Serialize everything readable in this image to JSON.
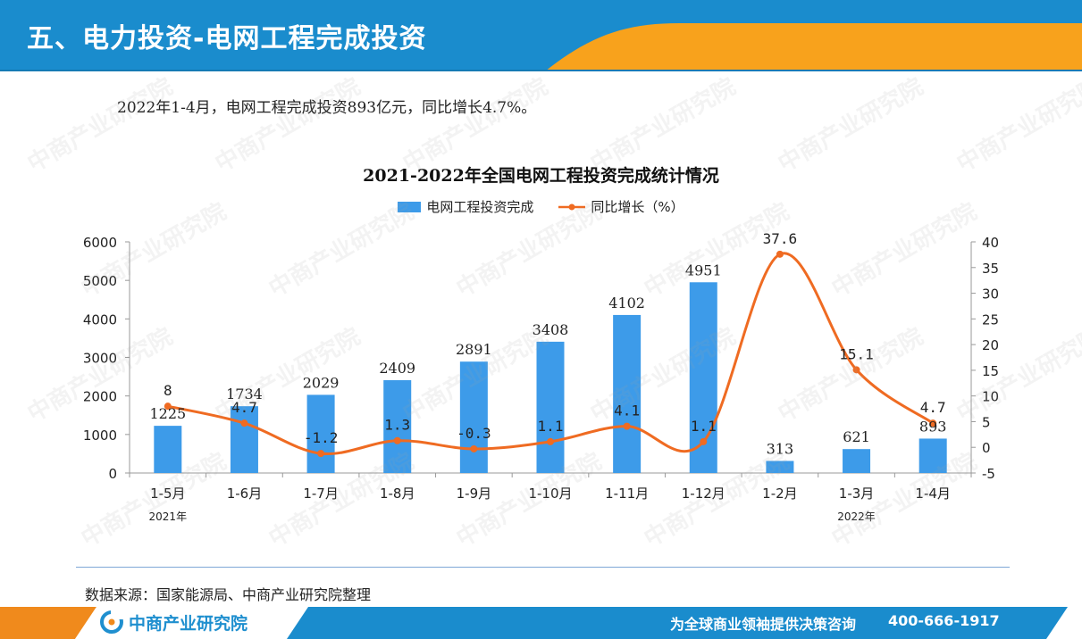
{
  "header": {
    "title": "五、电力投资-电网工程完成投资"
  },
  "summary": "2022年1-4月，电网工程完成投资893亿元，同比增长4.7%。",
  "source": "数据来源：国家能源局、中商产业研究院整理",
  "footer": {
    "brand": "中商产业研究院",
    "slogan": "为全球商业领袖提供决策咨询",
    "hotline": "400-666-1917"
  },
  "watermark": {
    "text": "中商产业研究院"
  },
  "colors": {
    "bar": "#3d9be9",
    "line": "#ef6b22",
    "header_blue": "#1a8ccd",
    "header_orange": "#f8a21c"
  },
  "chart_data": {
    "type": "bar",
    "title": "2021-2022年全国电网工程投资完成统计情况",
    "categories": [
      "1-5月",
      "1-6月",
      "1-7月",
      "1-8月",
      "1-9月",
      "1-10月",
      "1-11月",
      "1-12月",
      "1-2月",
      "1-3月",
      "1-4月"
    ],
    "year_labels": [
      {
        "category_index": 0,
        "label": "2021年"
      },
      {
        "category_index": 9,
        "label": "2022年"
      }
    ],
    "series": [
      {
        "name": "电网工程投资完成",
        "type": "bar",
        "axis": "left",
        "values": [
          1225,
          1734,
          2029,
          2409,
          2891,
          3408,
          4102,
          4951,
          313,
          621,
          893
        ]
      },
      {
        "name": "同比增长（%）",
        "type": "line",
        "axis": "right",
        "values": [
          8,
          4.7,
          -1.2,
          1.3,
          -0.3,
          1.1,
          4.1,
          1.1,
          37.6,
          15.1,
          4.7
        ]
      }
    ],
    "y_left": {
      "range": [
        0,
        6000
      ],
      "ticks": [
        0,
        1000,
        2000,
        3000,
        4000,
        5000,
        6000
      ]
    },
    "y_right": {
      "range": [
        -5,
        40
      ],
      "ticks": [
        -5,
        0,
        5,
        10,
        15,
        20,
        25,
        30,
        35,
        40
      ]
    },
    "legend_position": "top-center",
    "grid": false
  }
}
